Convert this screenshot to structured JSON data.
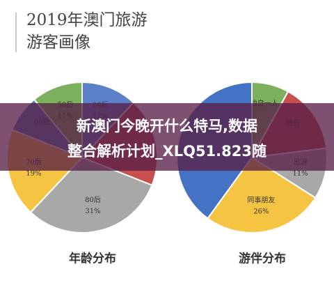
{
  "header": {
    "lines": [
      "2019年澳门旅游",
      "游客画像"
    ]
  },
  "banner": {
    "lines": [
      "新澳门今晚开什么特马,数据",
      "整合解析计划_XLQ51.823随"
    ]
  },
  "chart_data": [
    {
      "type": "pie",
      "title": "年龄分布",
      "categories": [
        "00后",
        null,
        "80后",
        "70后",
        "60后",
        "50后"
      ],
      "values": [
        12,
        19,
        31,
        19,
        8,
        11
      ],
      "value_labels": [
        "12%",
        null,
        "31%",
        "19%",
        null,
        "11%"
      ],
      "colors": [
        "#5b80c8",
        "#c5504d",
        "#a8a8a8",
        "#f6c443",
        "#4f7fbf",
        "#7db05c"
      ]
    },
    {
      "type": "pie",
      "title": "游伴分布",
      "categories": [
        "独自一人",
        "情侣",
        "出游",
        "同事朋友",
        null
      ],
      "values": [
        8,
        15,
        11,
        26,
        40
      ],
      "value_labels": [
        null,
        null,
        "11%",
        "26%",
        null
      ],
      "colors": [
        "#7db05c",
        "#c5504d",
        "#a8a8a8",
        "#f6c443",
        "#4472c4"
      ]
    }
  ]
}
